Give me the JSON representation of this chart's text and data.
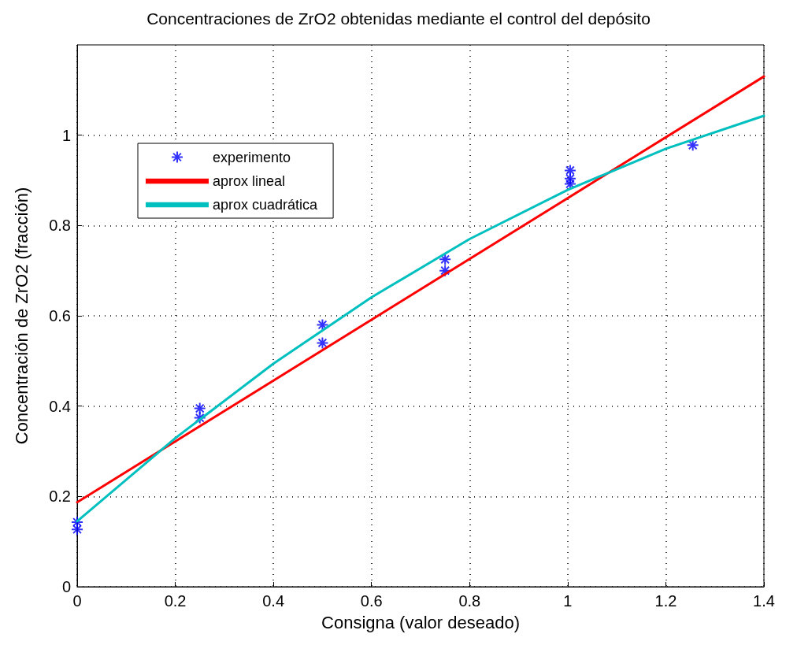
{
  "chart_data": {
    "type": "scatter",
    "title": "Concentraciones de ZrO2 obtenidas mediante el control del depósito",
    "xlabel": "Consigna (valor deseado)",
    "ylabel": "Concentración de ZrO2 (fracción)",
    "series": [
      {
        "name": "experimento",
        "color": "#0000ff",
        "marker": "cross",
        "x": [
          0,
          0,
          0.25,
          0.25,
          0.5,
          0.5,
          0.75,
          0.75,
          1.005,
          1.005,
          1.005,
          1.255
        ],
        "values": [
          0.143,
          0.127,
          0.395,
          0.374,
          0.58,
          0.54,
          0.725,
          0.7,
          0.922,
          0.904,
          0.892,
          0.978
        ]
      },
      {
        "name": "aprox lineal",
        "type": "line",
        "color": "#ff0000",
        "marker": "none",
        "x": [
          0,
          1.4
        ],
        "values": [
          0.187,
          1.13
        ]
      },
      {
        "name": "aprox cuadrática",
        "type": "line",
        "color": "#00bfbf",
        "marker": "none",
        "x": [
          0,
          0.2,
          0.4,
          0.6,
          0.8,
          1.0,
          1.2,
          1.4
        ],
        "values": [
          0.145,
          0.329,
          0.494,
          0.641,
          0.77,
          0.879,
          0.97,
          1.043
        ]
      }
    ],
    "xlim": [
      0,
      1.4
    ],
    "ylim": [
      0,
      1.2
    ],
    "xticks": [
      0,
      0.2,
      0.4,
      0.6,
      0.8,
      1,
      1.2,
      1.4
    ],
    "yticks": [
      0,
      0.2,
      0.4,
      0.6,
      0.8,
      1
    ],
    "grid": true,
    "legend": "top left"
  }
}
